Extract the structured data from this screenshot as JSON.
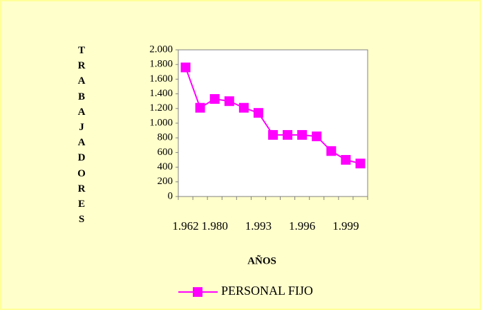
{
  "chart_data": {
    "type": "line",
    "x_label": "AÑOS",
    "y_label": "TRABAJADORES",
    "categories": [
      "1.962",
      null,
      "1.980",
      null,
      null,
      "1.993",
      null,
      null,
      "1.996",
      null,
      null,
      "1.999",
      null
    ],
    "series": [
      {
        "name": "PERSONAL FIJO",
        "color": "#ff00ff",
        "values": [
          1760,
          1210,
          1330,
          1300,
          1210,
          1140,
          840,
          840,
          840,
          820,
          620,
          500,
          450
        ]
      }
    ],
    "ylim": [
      0,
      2000
    ],
    "yticks": [
      0,
      200,
      400,
      600,
      800,
      {
        "value": 1000,
        "label": "1.000"
      },
      {
        "value": 1200,
        "label": "1.200"
      },
      {
        "value": 1400,
        "label": "1.400"
      },
      {
        "value": 1600,
        "label": "1.600"
      },
      {
        "value": 1800,
        "label": "1.800"
      },
      {
        "value": 2000,
        "label": "2.000"
      }
    ],
    "grid": false,
    "legend": "bottom"
  }
}
